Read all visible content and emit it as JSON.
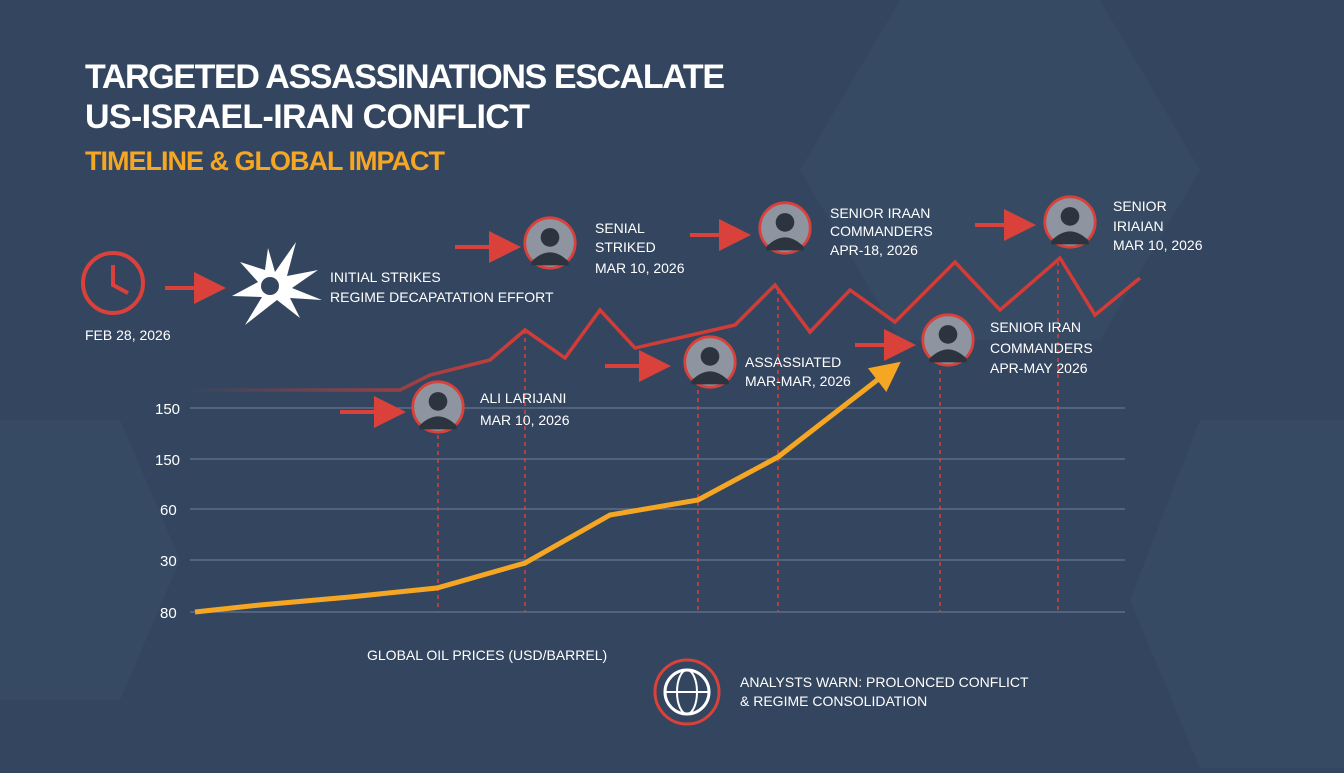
{
  "header": {
    "title_lines": [
      "TARGETED ASSASSINATIONS ESCALATE",
      "US-ISRAEL-IRAN CONFLICT"
    ],
    "subtitle": "TIMELINE & GLOBAL IMPACT"
  },
  "start": {
    "date": "FEB 28, 2026",
    "lines": [
      "INITIAL STRIKES",
      "REGIME DECAPATATION EFFORT"
    ]
  },
  "events": [
    {
      "lines": [
        "SENIAL",
        "STRIKED",
        "MAR 10, 2026"
      ]
    },
    {
      "lines": [
        "SENIOR IRAAN",
        "COMMANDERS",
        "APR-18, 2026"
      ]
    },
    {
      "lines": [
        "SENIOR",
        "IRIAIAN",
        "MAR 10, 2026"
      ]
    },
    {
      "lines": [
        "ALI LARIJANI",
        "MAR 10, 2026"
      ]
    },
    {
      "lines": [
        "ASSASSIATED",
        "MAR-MAR, 2026"
      ]
    },
    {
      "lines": [
        "SENIOR IRAN",
        "COMMANDERS",
        "APR-MAY 2026"
      ]
    }
  ],
  "axis_labels": [
    "150",
    "150",
    "60",
    "30",
    "80"
  ],
  "chart_label": "GLOBAL OIL PRICES (USD/BARREL)",
  "footer": {
    "lines": [
      "ANALYSTS WARN: PROLONCED CONFLICT",
      "& REGIME CONSOLIDATION"
    ]
  }
}
